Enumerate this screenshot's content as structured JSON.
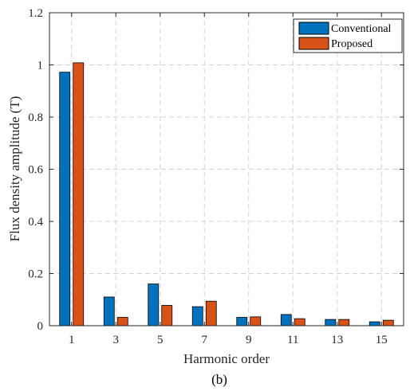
{
  "chart_data": {
    "type": "bar",
    "categories": [
      "1",
      "3",
      "5",
      "7",
      "9",
      "11",
      "13",
      "15"
    ],
    "series": [
      {
        "name": "Conventional",
        "color": "#0072BD",
        "values": [
          0.972,
          0.11,
          0.16,
          0.073,
          0.032,
          0.043,
          0.024,
          0.015
        ]
      },
      {
        "name": "Proposed",
        "color": "#D95319",
        "values": [
          1.008,
          0.032,
          0.078,
          0.094,
          0.034,
          0.027,
          0.024,
          0.021
        ]
      }
    ],
    "xlabel": "Harmonic order",
    "ylabel": "Flux density amplitude (T)",
    "ylim": [
      0,
      1.2
    ],
    "yticks": [
      "0",
      "0.2",
      "0.4",
      "0.6",
      "0.8",
      "1",
      "1.2"
    ],
    "grid": true,
    "legend_position": "top-right",
    "caption": "(b)"
  }
}
